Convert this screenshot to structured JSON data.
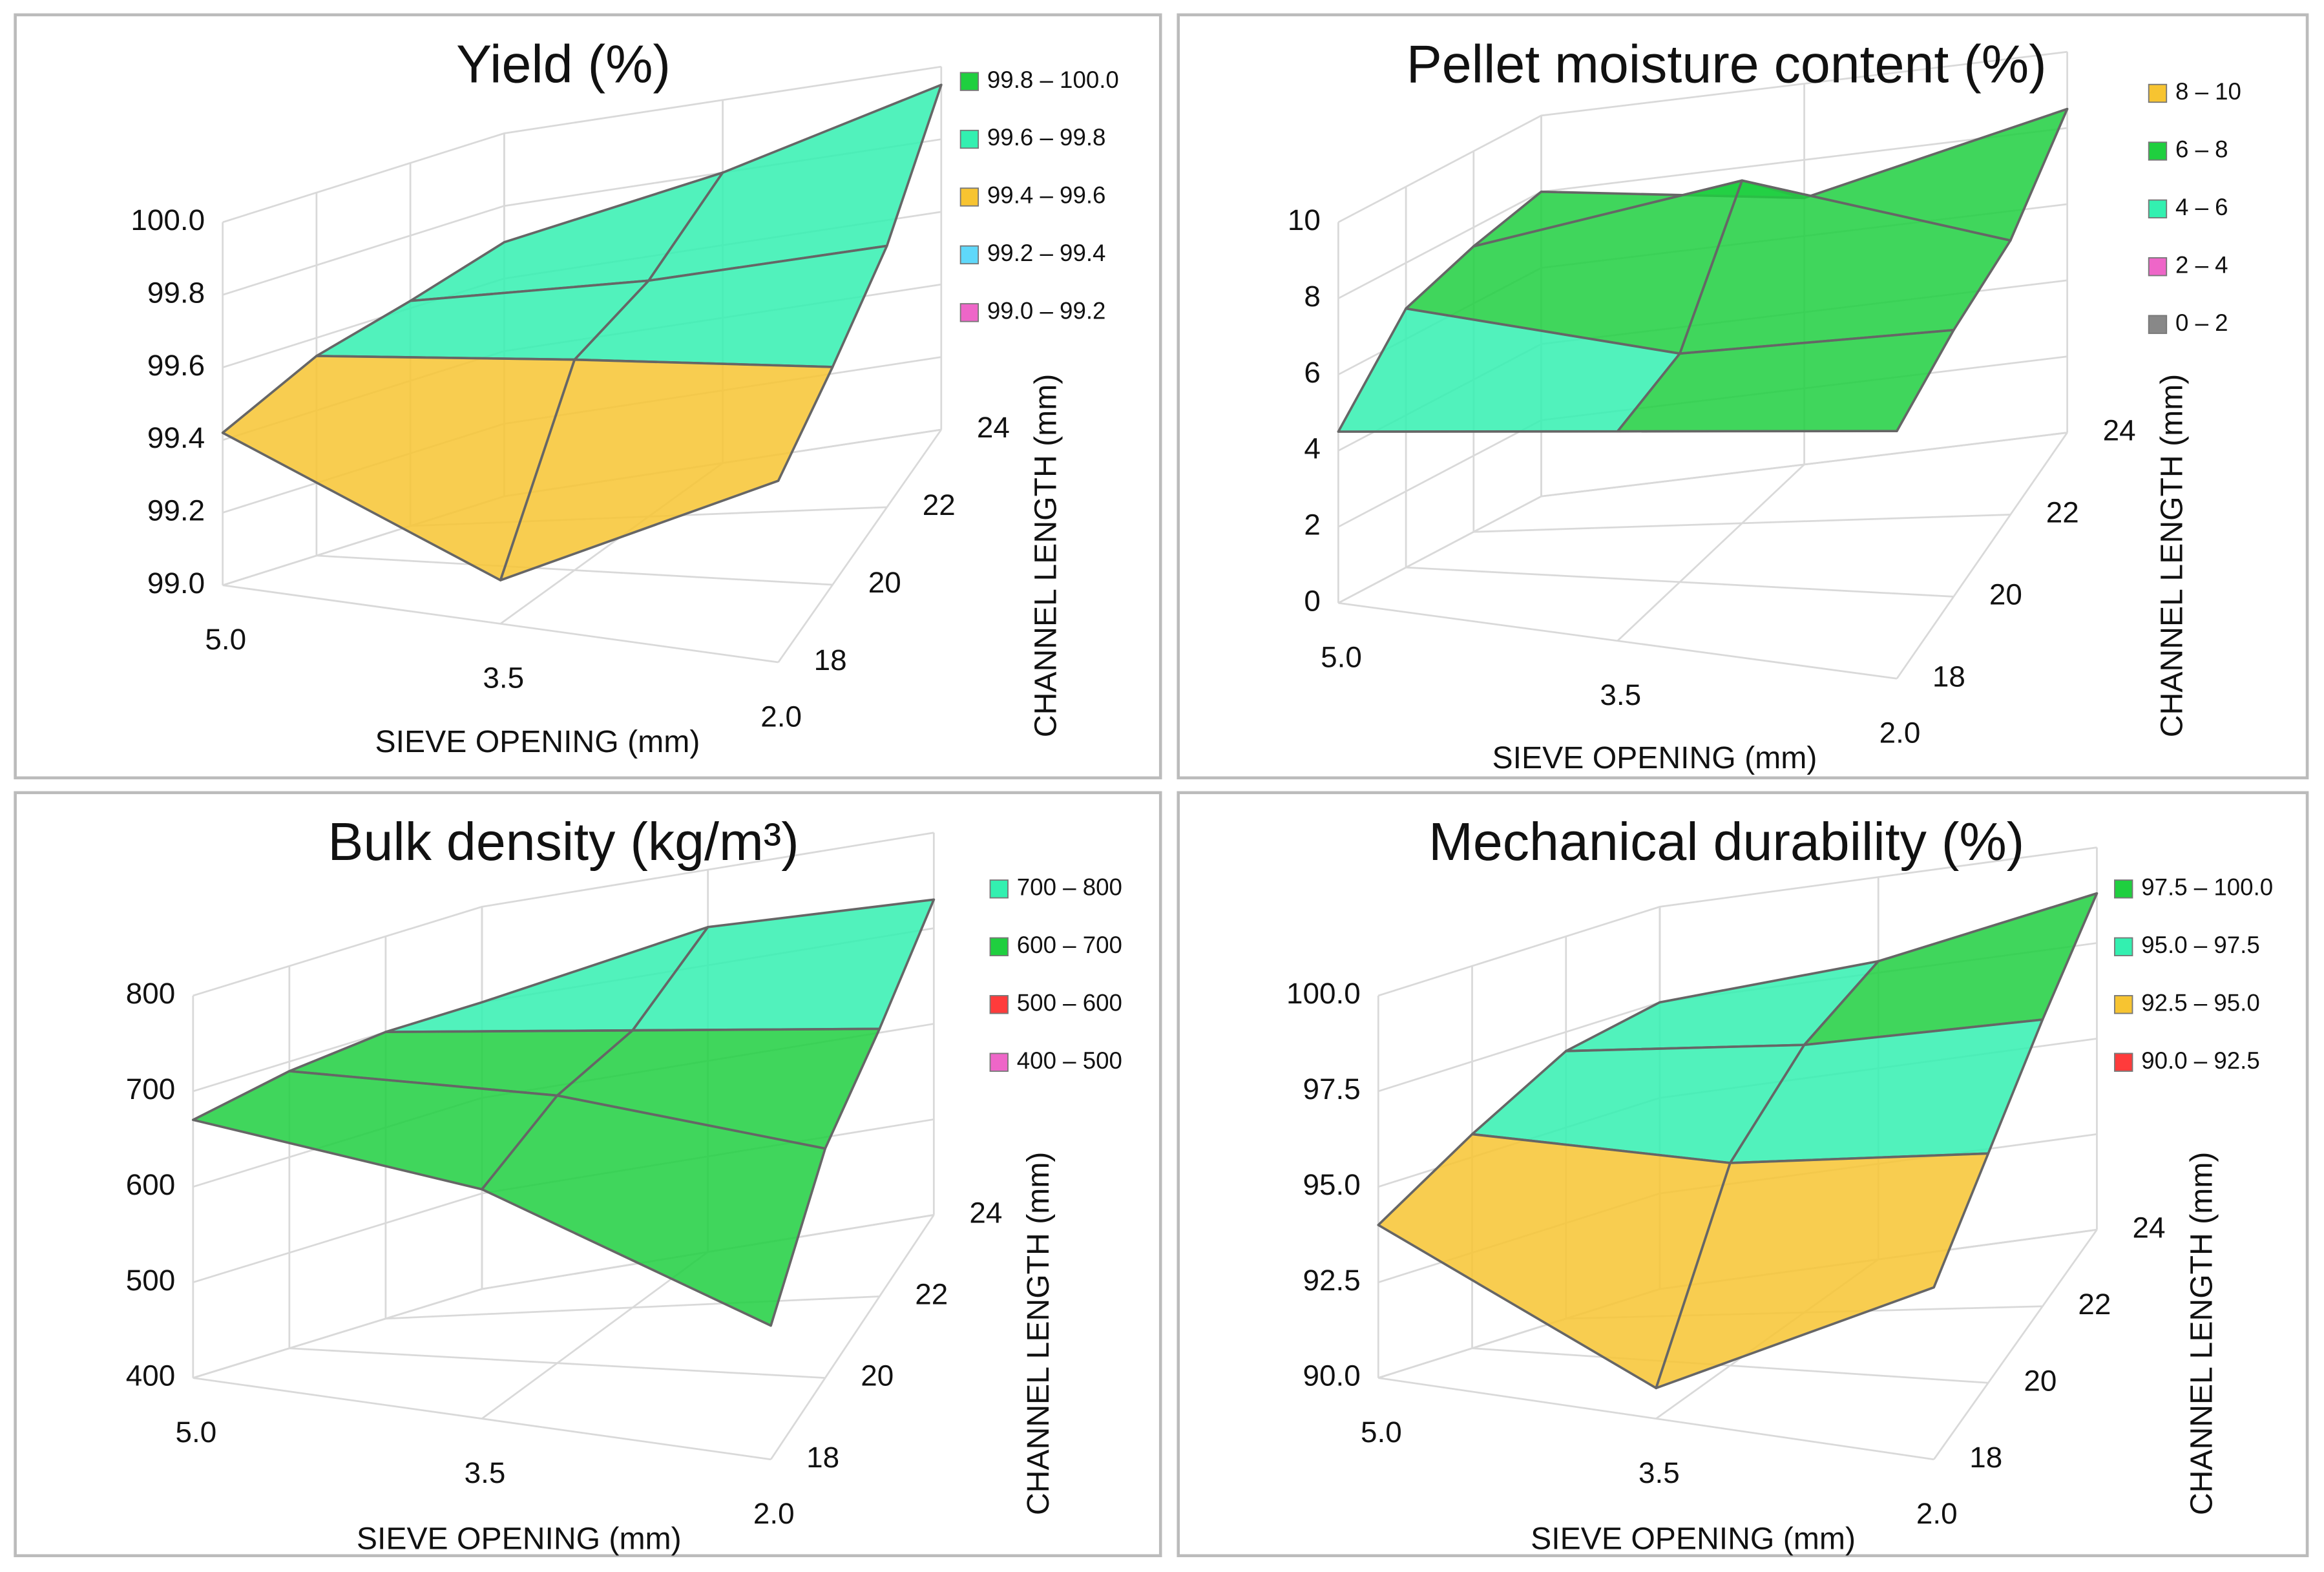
{
  "chart_data": [
    {
      "type": "surface",
      "title": "Yield (%)",
      "x_label": "SIEVE OPENING (mm)",
      "y_label": "CHANNEL LENGTH (mm)",
      "x": [
        "5.0",
        "3.5",
        "2.0"
      ],
      "y": [
        18,
        20,
        22,
        24
      ],
      "ylim": [
        18,
        24
      ],
      "yticks": [
        18,
        20,
        22,
        24
      ],
      "zlim": [
        99,
        100
      ],
      "zticks": [
        {
          "value": 99,
          "label": "99.0"
        },
        99.2,
        99.4,
        99.6,
        99.8,
        {
          "value": 100,
          "label": "100.0"
        }
      ],
      "values": [
        [
          99.42,
          99.12,
          99.5
        ],
        [
          99.55,
          99.58,
          99.6
        ],
        [
          99.62,
          99.65,
          99.72
        ],
        [
          99.7,
          99.8,
          99.95
        ]
      ],
      "series": [
        {
          "name": "99.8 – 100.0",
          "min": 99.8,
          "max": 100,
          "color": "#1fcf3f"
        },
        {
          "name": "99.6 – 99.8",
          "min": 99.6,
          "max": 99.8,
          "color": "#33f0b0"
        },
        {
          "name": "99.4 – 99.6",
          "min": 99.4,
          "max": 99.6,
          "color": "#f7c431"
        },
        {
          "name": "99.2 – 99.4",
          "min": 99.2,
          "max": 99.4,
          "color": "#5fd8fa"
        },
        {
          "name": "99.0 – 99.2",
          "min": 99.0,
          "max": 99.2,
          "color": "#ee66c8"
        }
      ]
    },
    {
      "type": "surface",
      "title": "Pellet moisture content (%)",
      "x_label": "SIEVE OPENING (mm)",
      "y_label": "CHANNEL LENGTH (mm)",
      "x": [
        "5.0",
        "3.5",
        "2.0"
      ],
      "y": [
        18,
        20,
        22,
        24
      ],
      "ylim": [
        18,
        24
      ],
      "yticks": [
        18,
        20,
        22,
        24
      ],
      "zlim": [
        0,
        10
      ],
      "zticks": [
        0,
        2,
        4,
        6,
        8,
        10
      ],
      "values": [
        [
          4.5,
          5.5,
          6.5
        ],
        [
          6.8,
          6.0,
          7.0
        ],
        [
          7.5,
          9.0,
          7.2
        ],
        [
          8.0,
          7.0,
          8.5
        ]
      ],
      "series": [
        {
          "name": "8 – 10",
          "min": 8,
          "max": 10,
          "color": "#f7c431"
        },
        {
          "name": "6 – 8",
          "min": 6,
          "max": 8,
          "color": "#1fcf3f"
        },
        {
          "name": "4 – 6",
          "min": 4,
          "max": 6,
          "color": "#33f0b0"
        },
        {
          "name": "2 – 4",
          "min": 2,
          "max": 4,
          "color": "#ee66c8"
        },
        {
          "name": "0 – 2",
          "min": 0,
          "max": 2,
          "color": "#888888"
        }
      ]
    },
    {
      "type": "surface",
      "title": "Bulk density (kg/m³)",
      "x_label": "SIEVE OPENING (mm)",
      "y_label": "CHANNEL LENGTH (mm)",
      "x": [
        "5.0",
        "3.5",
        "2.0"
      ],
      "y": [
        18,
        20,
        22,
        24
      ],
      "ylim": [
        18,
        24
      ],
      "yticks": [
        18,
        20,
        22,
        24
      ],
      "zlim": [
        400,
        800
      ],
      "zticks": [
        400,
        500,
        600,
        700,
        800
      ],
      "values": [
        [
          670,
          640,
          540
        ],
        [
          690,
          680,
          640
        ],
        [
          700,
          690,
          680
        ],
        [
          700,
          740,
          730
        ]
      ],
      "series": [
        {
          "name": "700 – 800",
          "min": 700,
          "max": 800,
          "color": "#33f0b0"
        },
        {
          "name": "600 – 700",
          "min": 600,
          "max": 700,
          "color": "#1fcf3f"
        },
        {
          "name": "500 – 600",
          "min": 500,
          "max": 600,
          "color": "#ff3b3b"
        },
        {
          "name": "400 – 500",
          "min": 400,
          "max": 500,
          "color": "#ee66c8"
        }
      ]
    },
    {
      "type": "surface",
      "title": "Mechanical durability (%)",
      "x_label": "SIEVE OPENING (mm)",
      "y_label": "CHANNEL LENGTH (mm)",
      "x": [
        "5.0",
        "3.5",
        "2.0"
      ],
      "y": [
        18,
        20,
        22,
        24
      ],
      "ylim": [
        18,
        24
      ],
      "yticks": [
        18,
        20,
        22,
        24
      ],
      "zlim": [
        90,
        100
      ],
      "zticks": [
        {
          "value": 90,
          "label": "90.0"
        },
        92.5,
        {
          "value": 95,
          "label": "95.0"
        },
        97.5,
        {
          "value": 100,
          "label": "100.0"
        }
      ],
      "values": [
        [
          94.0,
          90.8,
          94.5
        ],
        [
          95.6,
          95.3,
          96.0
        ],
        [
          97.0,
          97.0,
          97.5
        ],
        [
          97.5,
          97.8,
          98.8
        ]
      ],
      "series": [
        {
          "name": "97.5 – 100.0",
          "min": 97.5,
          "max": 100,
          "color": "#1fcf3f"
        },
        {
          "name": "95.0 – 97.5",
          "min": 95,
          "max": 97.5,
          "color": "#33f0b0"
        },
        {
          "name": "92.5 – 95.0",
          "min": 92.5,
          "max": 95,
          "color": "#f7c431"
        },
        {
          "name": "90.0 – 92.5",
          "min": 90,
          "max": 92.5,
          "color": "#ff3b3b"
        }
      ]
    }
  ]
}
